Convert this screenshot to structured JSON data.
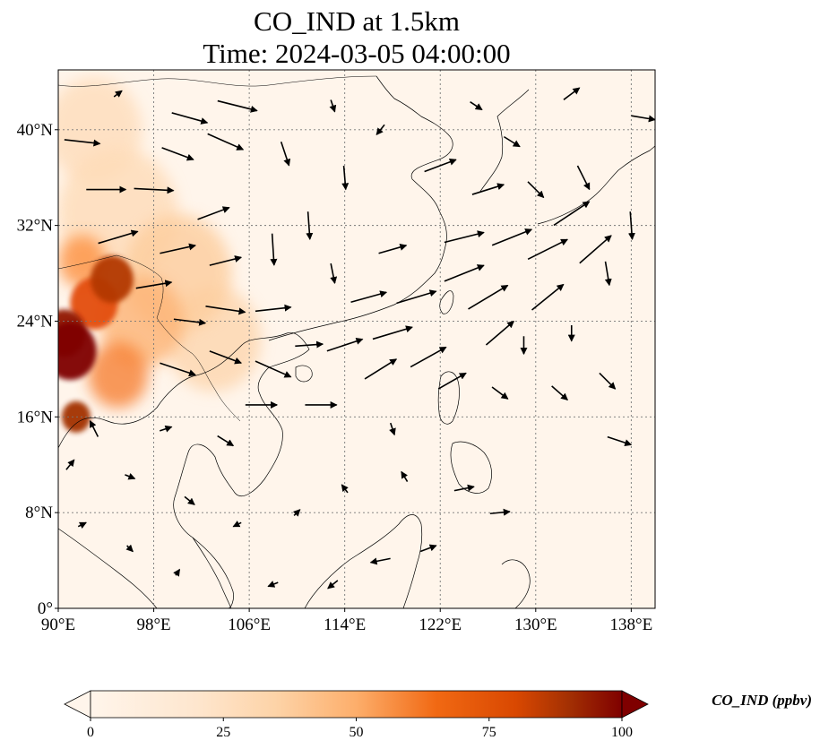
{
  "title_line1": "CO_IND at 1.5km",
  "title_line2": "Time: 2024-03-05 04:00:00",
  "colorbar": {
    "label": "CO_IND (ppbv)",
    "ticks": [
      "0",
      "25",
      "50",
      "75",
      "100"
    ],
    "min": 0,
    "max": 100,
    "extend": "both",
    "colors": [
      "#fff5eb",
      "#fdd3a7",
      "#fd9243",
      "#e34e0e",
      "#a33003",
      "#7f0000"
    ]
  },
  "map": {
    "lon_range": [
      90,
      140
    ],
    "lat_range": [
      0,
      45
    ],
    "x_ticks": [
      {
        "lon": 90,
        "label": "90°E"
      },
      {
        "lon": 98,
        "label": "98°E"
      },
      {
        "lon": 106,
        "label": "106°E"
      },
      {
        "lon": 114,
        "label": "114°E"
      },
      {
        "lon": 122,
        "label": "122°E"
      },
      {
        "lon": 130,
        "label": "130°E"
      },
      {
        "lon": 138,
        "label": "138°E"
      }
    ],
    "y_ticks": [
      {
        "lat": 0,
        "label": "0°"
      },
      {
        "lat": 8,
        "label": "8°N"
      },
      {
        "lat": 16,
        "label": "16°N"
      },
      {
        "lat": 24,
        "label": "24°N"
      },
      {
        "lat": 32,
        "label": "32°N"
      },
      {
        "lat": 40,
        "label": "40°N"
      }
    ],
    "gridlines": true,
    "background_color": "#fff5eb",
    "coastline_color": "#000000"
  },
  "chart_data": {
    "type": "heatmap",
    "variable": "CO_IND",
    "units": "ppbv",
    "level": "1.5km",
    "time": "2024-03-05 04:00:00",
    "xlim": [
      90,
      140
    ],
    "ylim": [
      0,
      45
    ],
    "concentration_hotspots": [
      {
        "lon": 91.0,
        "lat": 21.5,
        "value": 100,
        "spread_deg": 2.2
      },
      {
        "lon": 90.5,
        "lat": 23.0,
        "value": 90,
        "spread_deg": 1.8
      },
      {
        "lon": 91.5,
        "lat": 16.0,
        "value": 80,
        "spread_deg": 1.2
      },
      {
        "lon": 94.5,
        "lat": 27.5,
        "value": 75,
        "spread_deg": 1.8
      },
      {
        "lon": 93.0,
        "lat": 25.5,
        "value": 60,
        "spread_deg": 2.0
      },
      {
        "lon": 95.0,
        "lat": 19.5,
        "value": 45,
        "spread_deg": 2.5
      },
      {
        "lon": 92.0,
        "lat": 29.0,
        "value": 40,
        "spread_deg": 2.0
      },
      {
        "lon": 97.0,
        "lat": 24.0,
        "value": 30,
        "spread_deg": 3.5
      },
      {
        "lon": 100.0,
        "lat": 28.0,
        "value": 22,
        "spread_deg": 4.5
      },
      {
        "lon": 95.0,
        "lat": 33.0,
        "value": 15,
        "spread_deg": 5.0
      },
      {
        "lon": 103.0,
        "lat": 22.5,
        "value": 18,
        "spread_deg": 4.0
      },
      {
        "lon": 93.0,
        "lat": 40.0,
        "value": 14,
        "spread_deg": 4.0
      }
    ],
    "wind_vectors": [
      {
        "lon": 92,
        "lat": 39,
        "u": 1.8,
        "v": -0.2
      },
      {
        "lon": 94,
        "lat": 35,
        "u": 2.0,
        "v": 0.0
      },
      {
        "lon": 95,
        "lat": 31,
        "u": 2.0,
        "v": 0.6
      },
      {
        "lon": 98,
        "lat": 35,
        "u": 2.0,
        "v": -0.1
      },
      {
        "lon": 100,
        "lat": 38,
        "u": 1.6,
        "v": -0.6
      },
      {
        "lon": 101,
        "lat": 41,
        "u": 1.8,
        "v": -0.5
      },
      {
        "lon": 104,
        "lat": 39,
        "u": 1.8,
        "v": -0.8
      },
      {
        "lon": 105,
        "lat": 42,
        "u": 2.0,
        "v": -0.5
      },
      {
        "lon": 103,
        "lat": 33,
        "u": 1.6,
        "v": 0.6
      },
      {
        "lon": 100,
        "lat": 30,
        "u": 1.8,
        "v": 0.4
      },
      {
        "lon": 104,
        "lat": 29,
        "u": 1.6,
        "v": 0.4
      },
      {
        "lon": 98,
        "lat": 27,
        "u": 1.8,
        "v": 0.3
      },
      {
        "lon": 101,
        "lat": 24,
        "u": 1.6,
        "v": -0.2
      },
      {
        "lon": 104,
        "lat": 25,
        "u": 2.0,
        "v": -0.3
      },
      {
        "lon": 108,
        "lat": 25,
        "u": 1.8,
        "v": 0.2
      },
      {
        "lon": 108,
        "lat": 30,
        "u": 0.1,
        "v": -1.6
      },
      {
        "lon": 111,
        "lat": 32,
        "u": 0.1,
        "v": -1.4
      },
      {
        "lon": 113,
        "lat": 28,
        "u": 0.2,
        "v": -1.0
      },
      {
        "lon": 109,
        "lat": 38,
        "u": 0.4,
        "v": -1.2
      },
      {
        "lon": 114,
        "lat": 36,
        "u": 0.1,
        "v": -1.2
      },
      {
        "lon": 100,
        "lat": 20,
        "u": 1.8,
        "v": -0.6
      },
      {
        "lon": 104,
        "lat": 21,
        "u": 1.6,
        "v": -0.6
      },
      {
        "lon": 108,
        "lat": 20,
        "u": 1.8,
        "v": -0.8
      },
      {
        "lon": 111,
        "lat": 22,
        "u": 1.4,
        "v": 0.1
      },
      {
        "lon": 114,
        "lat": 22,
        "u": 1.8,
        "v": 0.6
      },
      {
        "lon": 118,
        "lat": 23,
        "u": 2.0,
        "v": 0.6
      },
      {
        "lon": 117,
        "lat": 20,
        "u": 1.6,
        "v": 1.0
      },
      {
        "lon": 121,
        "lat": 21,
        "u": 1.8,
        "v": 1.0
      },
      {
        "lon": 116,
        "lat": 26,
        "u": 1.8,
        "v": 0.5
      },
      {
        "lon": 120,
        "lat": 26,
        "u": 2.0,
        "v": 0.6
      },
      {
        "lon": 124,
        "lat": 28,
        "u": 2.0,
        "v": 0.8
      },
      {
        "lon": 126,
        "lat": 26,
        "u": 2.0,
        "v": 1.2
      },
      {
        "lon": 124,
        "lat": 31,
        "u": 2.0,
        "v": 0.5
      },
      {
        "lon": 128,
        "lat": 31,
        "u": 2.0,
        "v": 0.8
      },
      {
        "lon": 131,
        "lat": 30,
        "u": 2.0,
        "v": 1.0
      },
      {
        "lon": 133,
        "lat": 33,
        "u": 1.8,
        "v": 1.2
      },
      {
        "lon": 135,
        "lat": 30,
        "u": 1.6,
        "v": 1.4
      },
      {
        "lon": 131,
        "lat": 26,
        "u": 1.6,
        "v": 1.3
      },
      {
        "lon": 127,
        "lat": 23,
        "u": 1.4,
        "v": 1.2
      },
      {
        "lon": 123,
        "lat": 19,
        "u": 1.4,
        "v": 0.8
      },
      {
        "lon": 118,
        "lat": 30,
        "u": 1.4,
        "v": 0.4
      },
      {
        "lon": 122,
        "lat": 37,
        "u": 1.6,
        "v": 0.6
      },
      {
        "lon": 126,
        "lat": 35,
        "u": 1.6,
        "v": 0.5
      },
      {
        "lon": 130,
        "lat": 35,
        "u": 0.8,
        "v": -0.8
      },
      {
        "lon": 134,
        "lat": 36,
        "u": 0.6,
        "v": -1.2
      },
      {
        "lon": 136,
        "lat": 28,
        "u": 0.2,
        "v": -1.2
      },
      {
        "lon": 138,
        "lat": 32,
        "u": 0.1,
        "v": -1.4
      },
      {
        "lon": 133,
        "lat": 23,
        "u": 0.0,
        "v": -0.8
      },
      {
        "lon": 129,
        "lat": 22,
        "u": 0.0,
        "v": -0.9
      },
      {
        "lon": 136,
        "lat": 19,
        "u": 0.8,
        "v": -0.8
      },
      {
        "lon": 137,
        "lat": 14,
        "u": 1.2,
        "v": -0.4
      },
      {
        "lon": 127,
        "lat": 18,
        "u": 0.8,
        "v": -0.6
      },
      {
        "lon": 132,
        "lat": 18,
        "u": 0.8,
        "v": -0.7
      },
      {
        "lon": 118,
        "lat": 15,
        "u": 0.2,
        "v": -0.6
      },
      {
        "lon": 112,
        "lat": 17,
        "u": 1.6,
        "v": 0.0
      },
      {
        "lon": 107,
        "lat": 17,
        "u": 1.6,
        "v": 0.0
      },
      {
        "lon": 104,
        "lat": 14,
        "u": 0.8,
        "v": -0.5
      },
      {
        "lon": 99,
        "lat": 15,
        "u": 0.6,
        "v": 0.2
      },
      {
        "lon": 93,
        "lat": 15,
        "u": -0.4,
        "v": 0.8
      },
      {
        "lon": 91,
        "lat": 12,
        "u": 0.4,
        "v": 0.5
      },
      {
        "lon": 96,
        "lat": 11,
        "u": 0.5,
        "v": -0.2
      },
      {
        "lon": 101,
        "lat": 9,
        "u": 0.5,
        "v": -0.4
      },
      {
        "lon": 105,
        "lat": 7,
        "u": -0.4,
        "v": -0.2
      },
      {
        "lon": 110,
        "lat": 8,
        "u": 0.3,
        "v": 0.3
      },
      {
        "lon": 114,
        "lat": 10,
        "u": -0.3,
        "v": 0.4
      },
      {
        "lon": 119,
        "lat": 11,
        "u": -0.3,
        "v": 0.5
      },
      {
        "lon": 124,
        "lat": 10,
        "u": 1.0,
        "v": 0.2
      },
      {
        "lon": 127,
        "lat": 8,
        "u": 1.0,
        "v": 0.1
      },
      {
        "lon": 117,
        "lat": 4,
        "u": -1.0,
        "v": -0.2
      },
      {
        "lon": 121,
        "lat": 5,
        "u": 0.8,
        "v": 0.3
      },
      {
        "lon": 113,
        "lat": 2,
        "u": -0.5,
        "v": -0.4
      },
      {
        "lon": 108,
        "lat": 2,
        "u": -0.5,
        "v": -0.2
      },
      {
        "lon": 96,
        "lat": 5,
        "u": 0.3,
        "v": -0.3
      },
      {
        "lon": 100,
        "lat": 3,
        "u": 0.2,
        "v": 0.3
      },
      {
        "lon": 92,
        "lat": 7,
        "u": 0.4,
        "v": 0.2
      },
      {
        "lon": 95,
        "lat": 43,
        "u": 0.4,
        "v": 0.3
      },
      {
        "lon": 113,
        "lat": 42,
        "u": 0.2,
        "v": -0.6
      },
      {
        "lon": 117,
        "lat": 40,
        "u": -0.4,
        "v": -0.5
      },
      {
        "lon": 125,
        "lat": 42,
        "u": 0.6,
        "v": -0.4
      },
      {
        "lon": 133,
        "lat": 43,
        "u": 0.8,
        "v": 0.6
      },
      {
        "lon": 139,
        "lat": 41,
        "u": 1.2,
        "v": -0.2
      },
      {
        "lon": 128,
        "lat": 39,
        "u": 0.8,
        "v": -0.5
      }
    ]
  }
}
